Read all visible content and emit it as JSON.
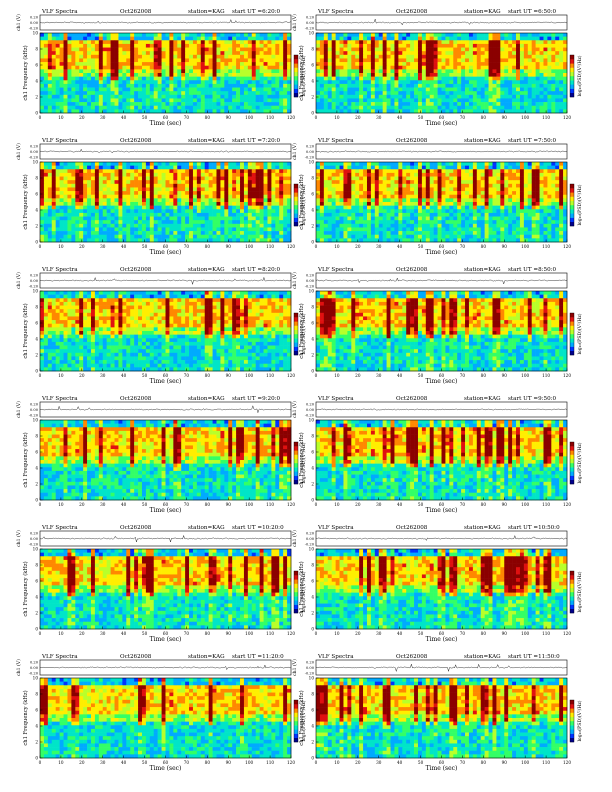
{
  "page": {
    "background": "#ffffff"
  },
  "common": {
    "title_left": "VLF Spectra",
    "date": "Oct262008",
    "station": "station=KAG",
    "ut_prefix": "start  UT =",
    "xlabel": "Time (sec)",
    "trace_label": "ch1 (V)",
    "freq_label": "ch1 Frequency (kHz)",
    "colorbar_label": "log₁₀(PSD)(V²/Hz)",
    "trace_ticks": [
      "0.20",
      "0.00",
      "-0.20"
    ],
    "freq_ticks": [
      "0",
      "2",
      "4",
      "6",
      "8",
      "10"
    ],
    "time_ticks_a": [
      "0",
      "10",
      "20",
      "30",
      "40",
      "50",
      "60",
      "70",
      "80",
      "90",
      "100",
      "110",
      "120"
    ],
    "time_ticks_b": [
      "0",
      "10",
      "20",
      "30",
      "40",
      "50",
      "60",
      "70",
      "80",
      "90",
      "100",
      "110",
      "120"
    ]
  },
  "chart_data": [
    {
      "type": "heatmap",
      "panel": "r1c1",
      "title": "VLF Spectra   Oct262008   station=KAG   start UT =6:20:0",
      "start_ut": "6:20:0",
      "xlabel": "Time (sec)",
      "ylabel": "Frequency (kHz)",
      "xlim": [
        0,
        120
      ],
      "ylim": [
        0,
        10
      ],
      "colorbar": "log10(PSD)(V^2/Hz)"
    },
    {
      "type": "heatmap",
      "panel": "r1c2",
      "title": "VLF Spectra   Oct262008   station=KAG   start UT =6:50:0",
      "start_ut": "6:50:0",
      "xlabel": "Time (sec)",
      "ylabel": "Frequency (kHz)",
      "xlim": [
        0,
        120
      ],
      "ylim": [
        0,
        10
      ],
      "colorbar": "log10(PSD)(V^2/Hz)"
    },
    {
      "type": "heatmap",
      "panel": "r2c1",
      "title": "VLF Spectra   Oct262008   station=KAG   start UT =7:20:0",
      "start_ut": "7:20:0",
      "xlabel": "Time (sec)",
      "ylabel": "Frequency (kHz)",
      "xlim": [
        0,
        120
      ],
      "ylim": [
        0,
        10
      ],
      "colorbar": "log10(PSD)(V^2/Hz)"
    },
    {
      "type": "heatmap",
      "panel": "r2c2",
      "title": "VLF Spectra   Oct262008   station=KAG   start UT =7:50:0",
      "start_ut": "7:50:0",
      "xlabel": "Time (sec)",
      "ylabel": "Frequency (kHz)",
      "xlim": [
        0,
        120
      ],
      "ylim": [
        0,
        10
      ],
      "colorbar": "log10(PSD)(V^2/Hz)"
    },
    {
      "type": "heatmap",
      "panel": "r3c1",
      "title": "VLF Spectra   Oct262008   station=KAG   start UT =8:20:0",
      "start_ut": "8:20:0",
      "xlabel": "Time (sec)",
      "ylabel": "Frequency (kHz)",
      "xlim": [
        0,
        120
      ],
      "ylim": [
        0,
        10
      ],
      "colorbar": "log10(PSD)(V^2/Hz)"
    },
    {
      "type": "heatmap",
      "panel": "r3c2",
      "title": "VLF Spectra   Oct262008   station=KAG   start UT =8:50:0",
      "start_ut": "8:50:0",
      "xlabel": "Time (sec)",
      "ylabel": "Frequency (kHz)",
      "xlim": [
        0,
        120
      ],
      "ylim": [
        0,
        10
      ],
      "colorbar": "log10(PSD)(V^2/Hz)"
    },
    {
      "type": "heatmap",
      "panel": "r4c1",
      "title": "VLF Spectra   Oct262008   station=KAG   start UT =9:20:0",
      "start_ut": "9:20:0",
      "xlabel": "Time (sec)",
      "ylabel": "Frequency (kHz)",
      "xlim": [
        0,
        120
      ],
      "ylim": [
        0,
        10
      ],
      "colorbar": "log10(PSD)(V^2/Hz)"
    },
    {
      "type": "heatmap",
      "panel": "r4c2",
      "title": "VLF Spectra   Oct262008   station=KAG   start UT =9:50:0",
      "start_ut": "9:50:0",
      "xlabel": "Time (sec)",
      "ylabel": "Frequency (kHz)",
      "xlim": [
        0,
        120
      ],
      "ylim": [
        0,
        10
      ],
      "colorbar": "log10(PSD)(V^2/Hz)"
    },
    {
      "type": "heatmap",
      "panel": "r5c1",
      "title": "VLF Spectra   Oct262008   station=KAG   start UT =10:20:0",
      "start_ut": "10:20:0",
      "xlabel": "Time (sec)",
      "ylabel": "Frequency (kHz)",
      "xlim": [
        0,
        120
      ],
      "ylim": [
        0,
        10
      ],
      "colorbar": "log10(PSD)(V^2/Hz)"
    },
    {
      "type": "heatmap",
      "panel": "r5c2",
      "title": "VLF Spectra   Oct262008   station=KAG   start UT =10:50:0",
      "start_ut": "10:50:0",
      "xlabel": "Time (sec)",
      "ylabel": "Frequency (kHz)",
      "xlim": [
        0,
        120
      ],
      "ylim": [
        0,
        10
      ],
      "colorbar": "log10(PSD)(V^2/Hz)"
    },
    {
      "type": "heatmap",
      "panel": "r6c1",
      "title": "VLF Spectra   Oct262008   station=KAG   start UT =11:20:0",
      "start_ut": "11:20:0",
      "xlabel": "Time (sec)",
      "ylabel": "Frequency (kHz)",
      "xlim": [
        0,
        120
      ],
      "ylim": [
        0,
        10
      ],
      "colorbar": "log10(PSD)(V^2/Hz)"
    },
    {
      "type": "heatmap",
      "panel": "r6c2",
      "title": "VLF Spectra   Oct262008   station=KAG   start UT =11:50:0",
      "start_ut": "11:50:0",
      "xlabel": "Time (sec)",
      "ylabel": "Frequency (kHz)",
      "xlim": [
        0,
        120
      ],
      "ylim": [
        0,
        10
      ],
      "colorbar": "log10(PSD)(V^2/Hz)"
    }
  ],
  "colormap": [
    "#00008b",
    "#0033ff",
    "#00aaff",
    "#00e5c8",
    "#33ff66",
    "#b8ff2a",
    "#ffee00",
    "#ff8800",
    "#e01010",
    "#8b0000"
  ]
}
